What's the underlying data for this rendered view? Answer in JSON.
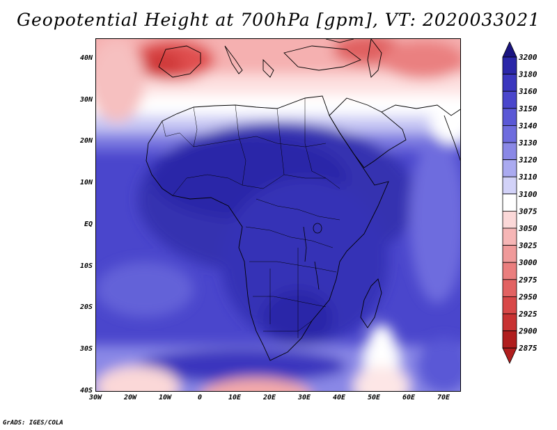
{
  "title": "Geopotential Height at 700hPa [gpm], VT: 2020033021",
  "footer": "GrADS: IGES/COLA",
  "map": {
    "variable": "Geopotential Height at 700hPa",
    "units": "gpm",
    "valid_time": "2020033021",
    "lon_range": [
      -30,
      75
    ],
    "lat_range": [
      -40,
      45
    ],
    "lat_ticks": [
      "40N",
      "30N",
      "20N",
      "10N",
      "EQ",
      "10S",
      "20S",
      "30S",
      "40S"
    ],
    "lon_ticks": [
      "30W",
      "20W",
      "10W",
      "0",
      "10E",
      "20E",
      "30E",
      "40E",
      "50E",
      "60E",
      "70E"
    ]
  },
  "colorbar": {
    "levels": [
      "3200",
      "3180",
      "3160",
      "3150",
      "3140",
      "3130",
      "3120",
      "3110",
      "3100",
      "3075",
      "3050",
      "3025",
      "3000",
      "2975",
      "2950",
      "2925",
      "2900",
      "2875"
    ],
    "colors": [
      "#1a1480",
      "#2a26a8",
      "#3a36be",
      "#4a46cc",
      "#5a58d6",
      "#6e6cde",
      "#8a88e6",
      "#aaaaf0",
      "#d2d2f8",
      "#ffffff",
      "#fbd8d8",
      "#f6b6b6",
      "#f09a9a",
      "#ea7e7e",
      "#e26262",
      "#d84848",
      "#c83232",
      "#b01e1e"
    ]
  }
}
